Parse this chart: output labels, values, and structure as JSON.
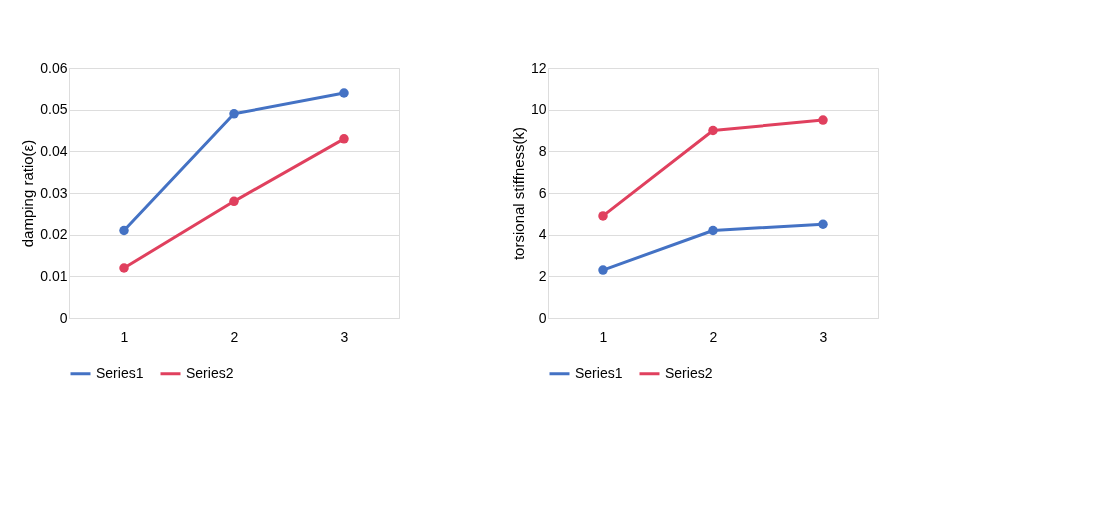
{
  "chart_data": [
    {
      "type": "line",
      "ylabel": "damping ratio(ε)",
      "categories": [
        "1",
        "2",
        "3"
      ],
      "series": [
        {
          "name": "Series1",
          "color": "#4472c4",
          "values": [
            0.021,
            0.049,
            0.054
          ]
        },
        {
          "name": "Series2",
          "color": "#e0405e",
          "values": [
            0.012,
            0.028,
            0.043
          ]
        }
      ],
      "ylim": [
        0,
        0.06
      ],
      "yticks": [
        0,
        0.01,
        0.02,
        0.03,
        0.04,
        0.05,
        0.06
      ],
      "grid": "y",
      "legend": "bottom",
      "marker": "circle",
      "line_style": "solid"
    },
    {
      "type": "line",
      "ylabel": "torsional stiffness(k)",
      "categories": [
        "1",
        "2",
        "3"
      ],
      "series": [
        {
          "name": "Series1",
          "color": "#4472c4",
          "values": [
            2.3,
            4.2,
            4.5
          ]
        },
        {
          "name": "Series2",
          "color": "#e0405e",
          "values": [
            4.9,
            9.0,
            9.5
          ]
        }
      ],
      "ylim": [
        0,
        12
      ],
      "yticks": [
        0,
        2,
        4,
        6,
        8,
        10,
        12
      ],
      "grid": "y",
      "legend": "bottom",
      "marker": "circle",
      "line_style": "solid"
    }
  ]
}
